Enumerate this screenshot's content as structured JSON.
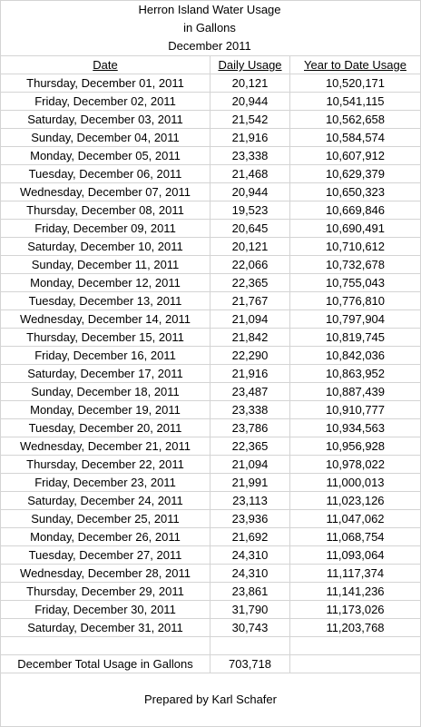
{
  "title": {
    "line1": "Herron Island Water Usage",
    "line2": "in Gallons",
    "line3": "December 2011"
  },
  "headers": {
    "date": "Date",
    "daily": "Daily Usage",
    "ytd": "Year to Date Usage"
  },
  "rows": [
    {
      "date": "Thursday, December 01, 2011",
      "daily": "20,121",
      "ytd": "10,520,171"
    },
    {
      "date": "Friday, December 02, 2011",
      "daily": "20,944",
      "ytd": "10,541,115"
    },
    {
      "date": "Saturday, December 03, 2011",
      "daily": "21,542",
      "ytd": "10,562,658"
    },
    {
      "date": "Sunday, December 04, 2011",
      "daily": "21,916",
      "ytd": "10,584,574"
    },
    {
      "date": "Monday, December 05, 2011",
      "daily": "23,338",
      "ytd": "10,607,912"
    },
    {
      "date": "Tuesday, December 06, 2011",
      "daily": "21,468",
      "ytd": "10,629,379"
    },
    {
      "date": "Wednesday, December 07, 2011",
      "daily": "20,944",
      "ytd": "10,650,323"
    },
    {
      "date": "Thursday, December 08, 2011",
      "daily": "19,523",
      "ytd": "10,669,846"
    },
    {
      "date": "Friday, December 09, 2011",
      "daily": "20,645",
      "ytd": "10,690,491"
    },
    {
      "date": "Saturday, December 10, 2011",
      "daily": "20,121",
      "ytd": "10,710,612"
    },
    {
      "date": "Sunday, December 11, 2011",
      "daily": "22,066",
      "ytd": "10,732,678"
    },
    {
      "date": "Monday, December 12, 2011",
      "daily": "22,365",
      "ytd": "10,755,043"
    },
    {
      "date": "Tuesday, December 13, 2011",
      "daily": "21,767",
      "ytd": "10,776,810"
    },
    {
      "date": "Wednesday, December 14, 2011",
      "daily": "21,094",
      "ytd": "10,797,904"
    },
    {
      "date": "Thursday, December 15, 2011",
      "daily": "21,842",
      "ytd": "10,819,745"
    },
    {
      "date": "Friday, December 16, 2011",
      "daily": "22,290",
      "ytd": "10,842,036"
    },
    {
      "date": "Saturday, December 17, 2011",
      "daily": "21,916",
      "ytd": "10,863,952"
    },
    {
      "date": "Sunday, December 18, 2011",
      "daily": "23,487",
      "ytd": "10,887,439"
    },
    {
      "date": "Monday, December 19, 2011",
      "daily": "23,338",
      "ytd": "10,910,777"
    },
    {
      "date": "Tuesday, December 20, 2011",
      "daily": "23,786",
      "ytd": "10,934,563"
    },
    {
      "date": "Wednesday, December 21, 2011",
      "daily": "22,365",
      "ytd": "10,956,928"
    },
    {
      "date": "Thursday, December 22, 2011",
      "daily": "21,094",
      "ytd": "10,978,022"
    },
    {
      "date": "Friday, December 23, 2011",
      "daily": "21,991",
      "ytd": "11,000,013"
    },
    {
      "date": "Saturday, December 24, 2011",
      "daily": "23,113",
      "ytd": "11,023,126"
    },
    {
      "date": "Sunday, December 25, 2011",
      "daily": "23,936",
      "ytd": "11,047,062"
    },
    {
      "date": "Monday, December 26, 2011",
      "daily": "21,692",
      "ytd": "11,068,754"
    },
    {
      "date": "Tuesday, December 27, 2011",
      "daily": "24,310",
      "ytd": "11,093,064"
    },
    {
      "date": "Wednesday, December 28, 2011",
      "daily": "24,310",
      "ytd": "11,117,374"
    },
    {
      "date": "Thursday, December 29, 2011",
      "daily": "23,861",
      "ytd": "11,141,236"
    },
    {
      "date": "Friday, December 30, 2011",
      "daily": "31,790",
      "ytd": "11,173,026"
    },
    {
      "date": "Saturday, December 31, 2011",
      "daily": "30,743",
      "ytd": "11,203,768"
    }
  ],
  "total": {
    "label": "December Total Usage in Gallons",
    "value": "703,718"
  },
  "footer": "Prepared by Karl Schafer",
  "colors": {
    "gridline": "#d4d4d4",
    "text": "#000000",
    "background": "#ffffff"
  }
}
